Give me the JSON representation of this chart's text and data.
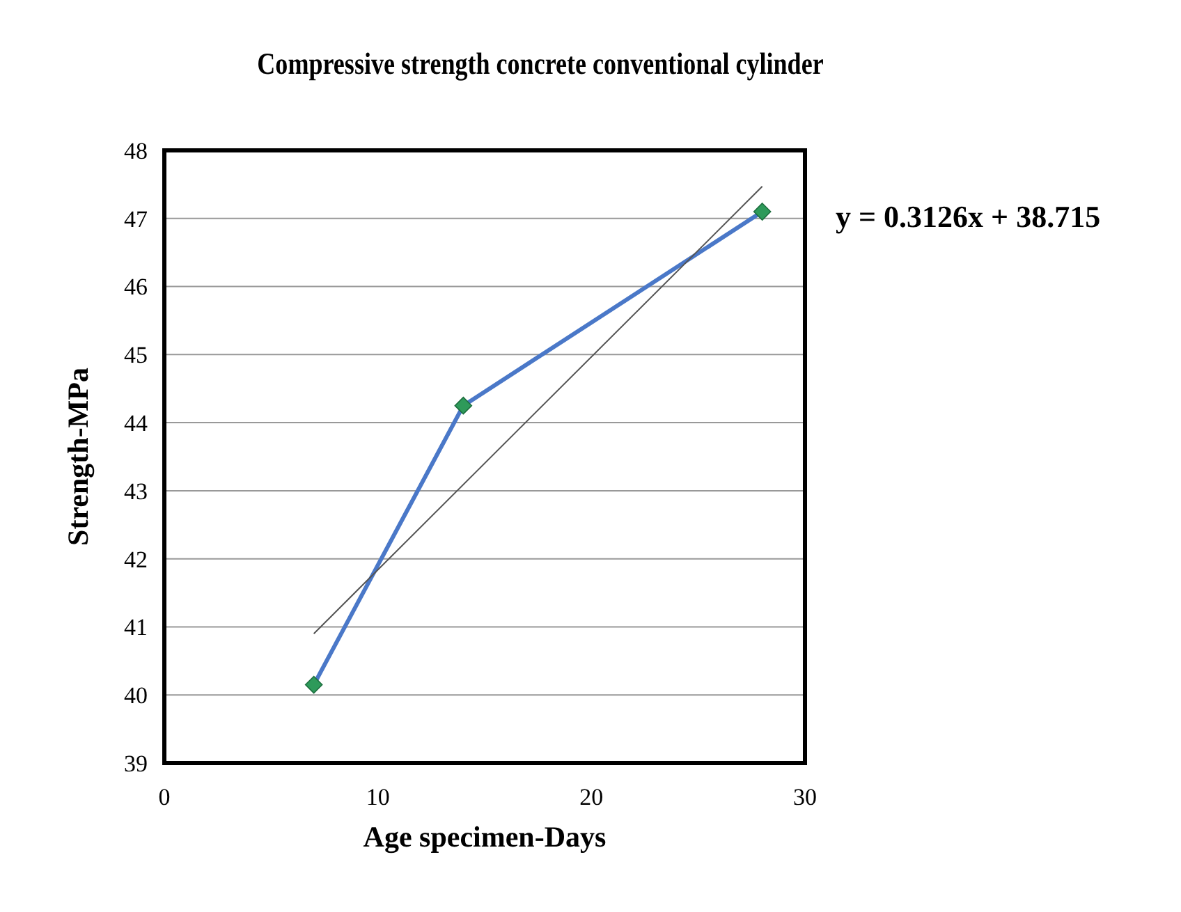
{
  "chart_data": {
    "type": "line",
    "title": "Compressive strength concrete conventional cylinder",
    "xlabel": "Age specimen-Days",
    "ylabel": "Strength-MPa",
    "x": [
      7,
      14,
      28
    ],
    "series": [
      {
        "color": "#4a78c8",
        "values": [
          40.15,
          44.25,
          47.1
        ],
        "marker": "none"
      },
      {
        "type": "scatter",
        "color": "#2e9a5a",
        "values": [
          40.15,
          44.25,
          47.1
        ],
        "marker": "diamond"
      },
      {
        "type": "line",
        "color": "#555555",
        "x": [
          7,
          28
        ],
        "values": [
          40.9,
          47.47
        ],
        "marker": "none"
      }
    ],
    "xlim": [
      0,
      30
    ],
    "xticks": [
      0,
      10,
      20,
      30
    ],
    "ylim": [
      39,
      48
    ],
    "yticks": [
      39,
      40,
      41,
      42,
      43,
      44,
      45,
      46,
      47,
      48
    ],
    "grid": "y",
    "annotations": [
      "y = 0.3126x + 38.715"
    ]
  }
}
